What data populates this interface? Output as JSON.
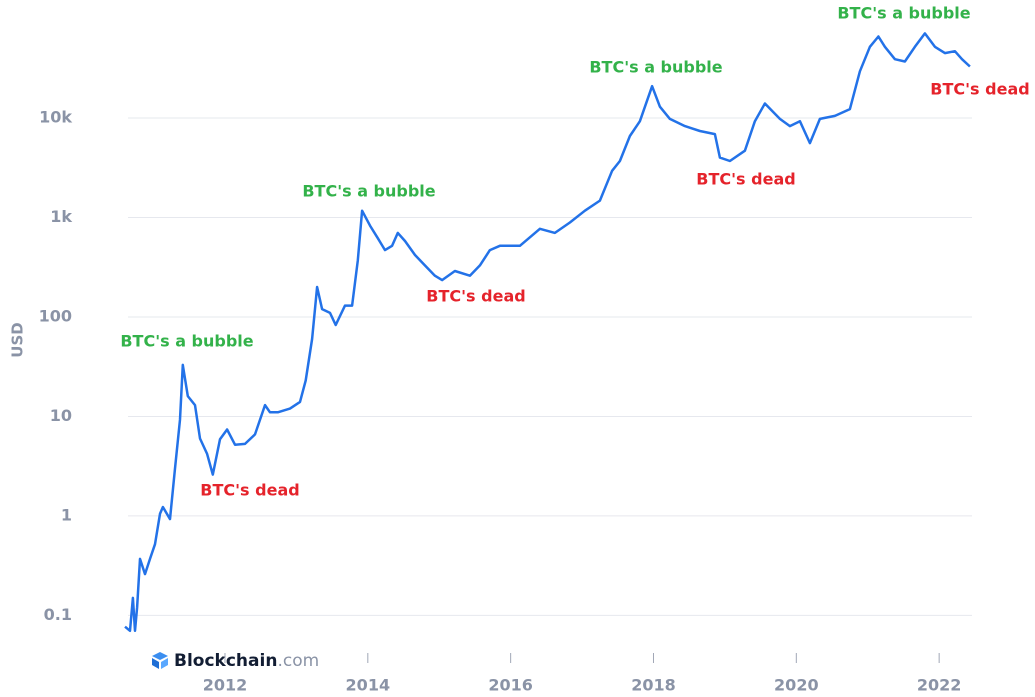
{
  "chart_data": {
    "type": "line",
    "ylabel": "USD",
    "log_scale": true,
    "grid": true,
    "xlim": [
      2010.6,
      2022.46
    ],
    "ylim": [
      0.065,
      75000
    ],
    "xticks": [
      2012,
      2014,
      2016,
      2018,
      2020,
      2022
    ],
    "yticks": [
      0.1,
      1,
      10,
      100,
      {
        "value": 1000,
        "label": "1k"
      },
      {
        "value": 10000,
        "label": "10k"
      }
    ],
    "x": [
      2010.6,
      2010.67,
      2010.71,
      2010.74,
      2010.77,
      2010.81,
      2010.88,
      2010.95,
      2011.02,
      2011.09,
      2011.13,
      2011.23,
      2011.3,
      2011.37,
      2011.41,
      2011.48,
      2011.58,
      2011.65,
      2011.75,
      2011.83,
      2011.93,
      2012.03,
      2012.14,
      2012.28,
      2012.42,
      2012.56,
      2012.63,
      2012.74,
      2012.91,
      2013.05,
      2013.13,
      2013.22,
      2013.29,
      2013.36,
      2013.47,
      2013.55,
      2013.68,
      2013.78,
      2013.86,
      2013.92,
      2014.03,
      2014.14,
      2014.24,
      2014.34,
      2014.42,
      2014.52,
      2014.66,
      2014.8,
      2014.94,
      2015.04,
      2015.22,
      2015.43,
      2015.57,
      2015.71,
      2015.85,
      2016.13,
      2016.41,
      2016.62,
      2016.83,
      2017.04,
      2017.25,
      2017.42,
      2017.53,
      2017.67,
      2017.81,
      2017.98,
      2018.09,
      2018.23,
      2018.44,
      2018.65,
      2018.86,
      2018.93,
      2019.07,
      2019.28,
      2019.42,
      2019.56,
      2019.77,
      2019.91,
      2020.05,
      2020.19,
      2020.33,
      2020.54,
      2020.75,
      2020.89,
      2021.03,
      2021.15,
      2021.24,
      2021.38,
      2021.52,
      2021.66,
      2021.8,
      2021.94,
      2022.08,
      2022.22,
      2022.32,
      2022.43
    ],
    "series": [
      {
        "color": "#2372e8",
        "values": [
          0.077,
          0.07,
          0.15,
          0.07,
          0.12,
          0.37,
          0.26,
          0.37,
          0.52,
          1.05,
          1.23,
          0.93,
          3,
          9.3,
          33,
          16,
          13,
          6,
          4.2,
          2.6,
          5.9,
          7.4,
          5.2,
          5.3,
          6.6,
          13,
          11,
          11,
          12,
          14,
          23,
          60,
          200,
          120,
          110,
          83,
          130,
          130,
          370,
          1170,
          830,
          620,
          470,
          520,
          700,
          580,
          420,
          330,
          260,
          235,
          290,
          260,
          330,
          470,
          520,
          520,
          770,
          700,
          890,
          1170,
          1480,
          2950,
          3700,
          6600,
          9300,
          20900,
          13000,
          9800,
          8300,
          7400,
          6900,
          4000,
          3700,
          4700,
          9300,
          14000,
          9800,
          8300,
          9300,
          5600,
          9800,
          10500,
          12300,
          29500,
          52000,
          66000,
          52000,
          39000,
          37000,
          52000,
          71000,
          52000,
          45000,
          47000,
          39000,
          33000
        ]
      }
    ],
    "annotations": [
      {
        "text": "BTC's a bubble",
        "color": "#33b24a"
      },
      {
        "text": "BTC's dead",
        "color": "#e5232b"
      },
      {
        "text": "BTC's a bubble",
        "color": "#33b24a"
      },
      {
        "text": "BTC's dead",
        "color": "#e5232b"
      },
      {
        "text": "BTC's a bubble",
        "color": "#33b24a"
      },
      {
        "text": "BTC's dead",
        "color": "#e5232b"
      },
      {
        "text": "BTC's a bubble",
        "color": "#33b24a"
      },
      {
        "text": "BTC's dead",
        "color": "#e5232b"
      }
    ]
  },
  "brand": {
    "name": "Blockchain",
    "suffix": ".com"
  }
}
